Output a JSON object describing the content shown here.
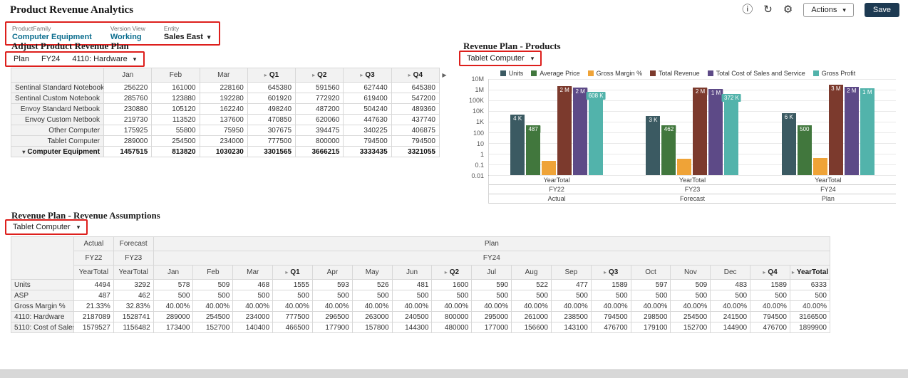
{
  "colors": {
    "annotation_red": "#dd1f1c",
    "save_button_bg": "#1d3a52",
    "pov_link_teal": "#0b6d8e"
  },
  "icons": {
    "info": "ⓘ",
    "refresh": "↻",
    "gear": "⚙",
    "dropdown_caret": "▾",
    "expand_arrow": "▸",
    "collapse_arrow": "▾",
    "scroll_right": "▶"
  },
  "header": {
    "title": "Product Revenue Analytics",
    "actions_label": "Actions",
    "save_label": "Save"
  },
  "pov": [
    {
      "label": "ProductFamily",
      "value": "Computer Equipment"
    },
    {
      "label": "Version View",
      "value": "Working"
    },
    {
      "label": "Entity",
      "value": "Sales East"
    }
  ],
  "adjust_grid": {
    "title": "Adjust Product Revenue Plan",
    "pov_members": [
      "Plan",
      "FY24",
      "4110: Hardware"
    ],
    "columns": [
      {
        "label": "Jan"
      },
      {
        "label": "Feb"
      },
      {
        "label": "Mar"
      },
      {
        "label": "Q1",
        "expandable": true
      },
      {
        "label": "Q2",
        "expandable": true
      },
      {
        "label": "Q3",
        "expandable": true
      },
      {
        "label": "Q4",
        "expandable": true
      }
    ],
    "rows": [
      {
        "name": "Sentinal Standard Notebook",
        "values": [
          "256220",
          "161000",
          "228160",
          "645380",
          "591560",
          "627440",
          "645380"
        ]
      },
      {
        "name": "Sentinal Custom Notebook",
        "values": [
          "285760",
          "123880",
          "192280",
          "601920",
          "772920",
          "619400",
          "547200"
        ]
      },
      {
        "name": "Envoy Standard Netbook",
        "values": [
          "230880",
          "105120",
          "162240",
          "498240",
          "487200",
          "504240",
          "489360"
        ]
      },
      {
        "name": "Envoy Custom Netbook",
        "values": [
          "219730",
          "113520",
          "137600",
          "470850",
          "620060",
          "447630",
          "437740"
        ]
      },
      {
        "name": "Other Computer",
        "values": [
          "175925",
          "55800",
          "75950",
          "307675",
          "394475",
          "340225",
          "406875"
        ]
      },
      {
        "name": "Tablet Computer",
        "values": [
          "289000",
          "254500",
          "234000",
          "777500",
          "800000",
          "794500",
          "794500"
        ]
      },
      {
        "name": "Computer Equipment",
        "total": true,
        "values": [
          "1457515",
          "813820",
          "1030230",
          "3301565",
          "3666215",
          "3333435",
          "3321055"
        ]
      }
    ]
  },
  "chart_panel": {
    "title": "Revenue Plan - Products",
    "selector": "Tablet Computer",
    "chart_data": {
      "type": "bar",
      "y_scale": "log",
      "y_min": 0.01,
      "y_max": 10000000,
      "grid": true,
      "legend_position": "top",
      "y_ticks": [
        {
          "label": "10M",
          "value": 10000000
        },
        {
          "label": "1M",
          "value": 1000000
        },
        {
          "label": "100K",
          "value": 100000
        },
        {
          "label": "10K",
          "value": 10000
        },
        {
          "label": "1K",
          "value": 1000
        },
        {
          "label": "100",
          "value": 100
        },
        {
          "label": "10",
          "value": 10
        },
        {
          "label": "1",
          "value": 1
        },
        {
          "label": "0.1",
          "value": 0.1
        },
        {
          "label": "0.01",
          "value": 0.01
        }
      ],
      "groups": [
        {
          "period": "YearTotal",
          "year": "FY22",
          "scenario": "Actual"
        },
        {
          "period": "YearTotal",
          "year": "FY23",
          "scenario": "Forecast"
        },
        {
          "period": "YearTotal",
          "year": "FY24",
          "scenario": "Plan"
        }
      ],
      "series": [
        {
          "name": "Units",
          "color": "#3b5a62",
          "values": [
            4494,
            3292,
            6333
          ],
          "bar_labels": [
            "4 K",
            "3 K",
            "6 K"
          ]
        },
        {
          "name": "Average Price",
          "color": "#41773d",
          "values": [
            487,
            462,
            500
          ],
          "bar_labels": [
            "487",
            "462",
            "500"
          ]
        },
        {
          "name": "Gross Margin %",
          "color": "#efa337",
          "values": [
            0.2133,
            0.3283,
            0.4
          ],
          "bar_labels": [
            "",
            "",
            ""
          ]
        },
        {
          "name": "Total Revenue",
          "color": "#7c3a2d",
          "values": [
            2187089,
            1528741,
            3166500
          ],
          "bar_labels": [
            "2 M",
            "2 M",
            "3 M"
          ]
        },
        {
          "name": "Total Cost of Sales and Service",
          "color": "#5d4a87",
          "values": [
            1579527,
            1156482,
            1899900
          ],
          "bar_labels": [
            "2 M",
            "1 M",
            "2 M"
          ]
        },
        {
          "name": "Gross Profit",
          "color": "#52b3ab",
          "values": [
            607562,
            372259,
            1266600
          ],
          "bar_labels": [
            "608 K",
            "372 K",
            "1 M"
          ]
        }
      ]
    }
  },
  "assumptions_grid": {
    "title": "Revenue Plan - Revenue Assumptions",
    "selector": "Tablet Computer",
    "scenario_header": [
      {
        "label": "Actual",
        "span": 1
      },
      {
        "label": "Forecast",
        "span": 1
      },
      {
        "label": "Plan",
        "span": 17
      }
    ],
    "year_header": [
      {
        "label": "FY22",
        "span": 1
      },
      {
        "label": "FY23",
        "span": 1
      },
      {
        "label": "FY24",
        "span": 17
      }
    ],
    "period_header": [
      {
        "label": "YearTotal"
      },
      {
        "label": "YearTotal"
      },
      {
        "label": "Jan"
      },
      {
        "label": "Feb"
      },
      {
        "label": "Mar"
      },
      {
        "label": "Q1",
        "expandable": true
      },
      {
        "label": "Apr"
      },
      {
        "label": "May"
      },
      {
        "label": "Jun"
      },
      {
        "label": "Q2",
        "expandable": true
      },
      {
        "label": "Jul"
      },
      {
        "label": "Aug"
      },
      {
        "label": "Sep"
      },
      {
        "label": "Q3",
        "expandable": true
      },
      {
        "label": "Oct"
      },
      {
        "label": "Nov"
      },
      {
        "label": "Dec"
      },
      {
        "label": "Q4",
        "expandable": true
      },
      {
        "label": "YearTotal",
        "expandable": true
      }
    ],
    "rows": [
      {
        "name": "Units",
        "values": [
          "4494",
          "3292",
          "578",
          "509",
          "468",
          "1555",
          "593",
          "526",
          "481",
          "1600",
          "590",
          "522",
          "477",
          "1589",
          "597",
          "509",
          "483",
          "1589",
          "6333"
        ]
      },
      {
        "name": "ASP",
        "values": [
          "487",
          "462",
          "500",
          "500",
          "500",
          "500",
          "500",
          "500",
          "500",
          "500",
          "500",
          "500",
          "500",
          "500",
          "500",
          "500",
          "500",
          "500",
          "500"
        ]
      },
      {
        "name": "Gross Margin %",
        "values": [
          "21.33%",
          "32.83%",
          "40.00%",
          "40.00%",
          "40.00%",
          "40.00%",
          "40.00%",
          "40.00%",
          "40.00%",
          "40.00%",
          "40.00%",
          "40.00%",
          "40.00%",
          "40.00%",
          "40.00%",
          "40.00%",
          "40.00%",
          "40.00%",
          "40.00%"
        ]
      },
      {
        "name": "4110: Hardware",
        "values": [
          "2187089",
          "1528741",
          "289000",
          "254500",
          "234000",
          "777500",
          "296500",
          "263000",
          "240500",
          "800000",
          "295000",
          "261000",
          "238500",
          "794500",
          "298500",
          "254500",
          "241500",
          "794500",
          "3166500"
        ]
      },
      {
        "name": "5110: Cost of Sales",
        "values": [
          "1579527",
          "1156482",
          "173400",
          "152700",
          "140400",
          "466500",
          "177900",
          "157800",
          "144300",
          "480000",
          "177000",
          "156600",
          "143100",
          "476700",
          "179100",
          "152700",
          "144900",
          "476700",
          "1899900"
        ]
      }
    ]
  }
}
